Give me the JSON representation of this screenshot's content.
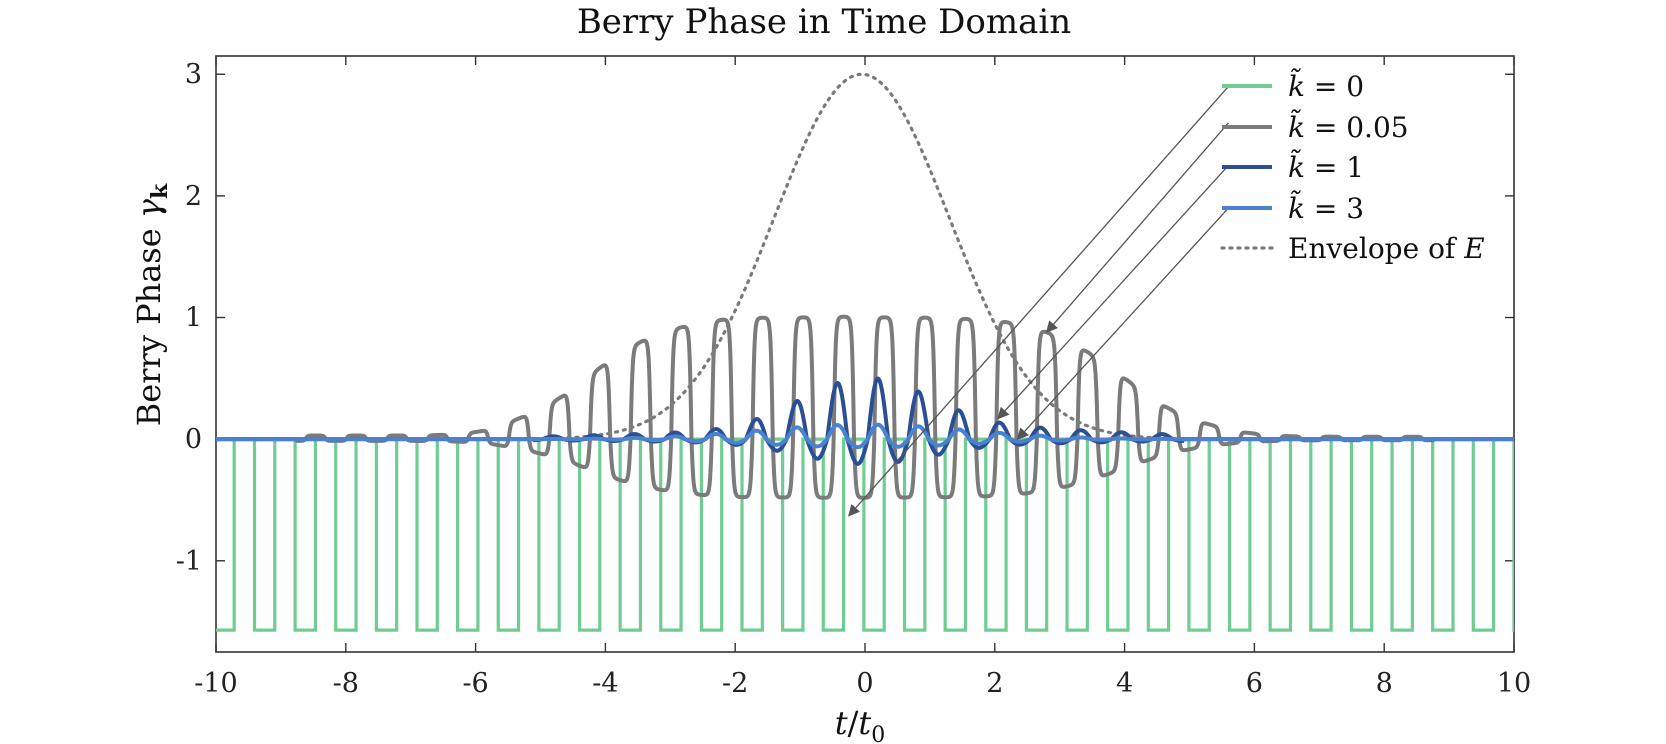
{
  "chart_data": {
    "type": "line",
    "title": "Berry Phase in Time Domain",
    "xlabel": "t/t0",
    "xlabel_parts": {
      "num": "t",
      "slash": "/",
      "den": "t",
      "den_sub": "0"
    },
    "ylabel": "Berry Phase γk",
    "ylabel_parts": {
      "text": "Berry Phase ",
      "sym": "γ",
      "sub": "k"
    },
    "xlim": [
      -10,
      10
    ],
    "ylim": [
      -1.75,
      3.15
    ],
    "x_ticks": [
      -10,
      -8,
      -6,
      -4,
      -2,
      0,
      2,
      4,
      6,
      8,
      10
    ],
    "x_tick_labels": [
      "-10",
      "-8",
      "-6",
      "-4",
      "-2",
      "0",
      "2",
      "4",
      "6",
      "8",
      "10"
    ],
    "y_ticks": [
      -1,
      0,
      1,
      2,
      3
    ],
    "y_tick_labels": [
      "-1",
      "0",
      "1",
      "2",
      "3"
    ],
    "grid": false,
    "legend_position": "top-right",
    "carrier_period": 0.626,
    "envelope_sigma": 1.35,
    "series": [
      {
        "name": "k̃ = 0",
        "label_sym": "k̃",
        "label_val": " = 0",
        "color": "#6fcd93",
        "style": "solid",
        "description": "square wave toggling between 0 and -1.57 (≈ -π/2) with period ≈ 0.626",
        "low_value": -1.57,
        "high_value": 0
      },
      {
        "name": "k̃ = 0.05",
        "label_sym": "k̃",
        "label_val": " = 0.05",
        "color": "#7b7b7b",
        "style": "solid",
        "peaks_x": [
          -6.5,
          -5.9,
          -5.2,
          -4.6,
          -4.0,
          -3.4,
          -2.8,
          -2.2,
          -1.6,
          -0.9,
          -0.3,
          0.3,
          0.9,
          1.6,
          2.2,
          2.8,
          3.4,
          4.0,
          4.6,
          5.2,
          5.9,
          6.5
        ],
        "peaks_y": [
          0.03,
          0.06,
          0.18,
          0.36,
          0.63,
          0.83,
          0.93,
          0.99,
          1.0,
          1.0,
          1.01,
          1.0,
          1.0,
          0.99,
          0.97,
          0.89,
          0.74,
          0.5,
          0.26,
          0.12,
          0.05,
          0.02
        ],
        "min_value": -0.49
      },
      {
        "name": "k̃ = 1",
        "label_sym": "k̃",
        "label_val": " = 1",
        "color": "#2a4f94",
        "style": "solid",
        "peaks_x": [
          -2.2,
          -1.6,
          -1.0,
          -0.4,
          0.2,
          0.8,
          1.4,
          2.0
        ],
        "peaks_y": [
          0.08,
          0.19,
          0.34,
          0.5,
          0.54,
          0.43,
          0.27,
          0.14
        ],
        "min_value": -0.22
      },
      {
        "name": "k̃ = 3",
        "label_sym": "k̃",
        "label_val": " = 3",
        "color": "#4a82cf",
        "style": "solid",
        "description": "small oscillation, peak ≈ 0.12 near t = 0",
        "peak_value": 0.12
      },
      {
        "name": "Envelope of E",
        "label_text": "Envelope of ",
        "label_sym": "E",
        "color": "#7a7a7a",
        "style": "dotted",
        "peak_value": 3.0,
        "peak_x": -0.05
      }
    ],
    "annotations": [
      {
        "type": "arrow",
        "from": [
          5.6,
          2.9
        ],
        "to": [
          -0.25,
          -0.63
        ]
      },
      {
        "type": "arrow",
        "from": [
          5.6,
          2.6
        ],
        "to": [
          2.8,
          0.88
        ]
      },
      {
        "type": "arrow",
        "from": [
          5.6,
          2.25
        ],
        "to": [
          2.05,
          0.17
        ]
      },
      {
        "type": "arrow",
        "from": [
          5.6,
          1.9
        ],
        "to": [
          2.35,
          0.0
        ]
      }
    ]
  }
}
